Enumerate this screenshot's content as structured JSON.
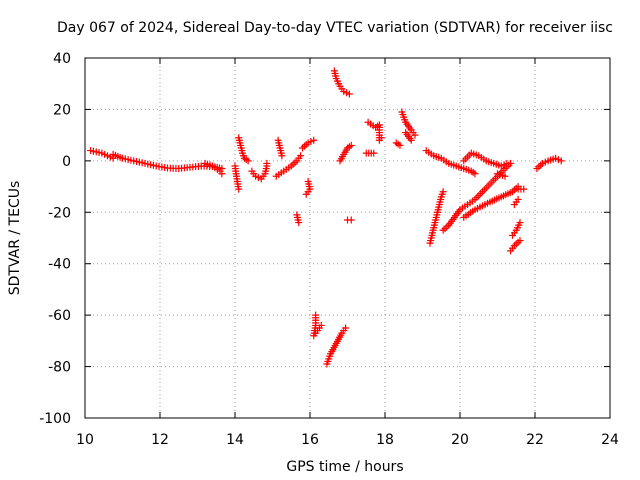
{
  "chart_data": {
    "type": "scatter",
    "title": "Day 067 of 2024, Sidereal Day-to-day VTEC variation (SDTVAR) for receiver iisc",
    "xlabel": "GPS time / hours",
    "ylabel": "SDTVAR / TECUs",
    "xlim": [
      10,
      24
    ],
    "ylim": [
      -100,
      40
    ],
    "xticks": [
      10,
      12,
      14,
      16,
      18,
      20,
      22,
      24
    ],
    "yticks": [
      -100,
      -80,
      -60,
      -40,
      -20,
      0,
      20,
      40
    ],
    "grid": true,
    "legend": "none",
    "marker": "plus",
    "color": "#ff0000",
    "segments": [
      [
        [
          10.15,
          4
        ],
        [
          10.3,
          3.5
        ],
        [
          10.45,
          3
        ],
        [
          10.6,
          2
        ],
        [
          10.75,
          1
        ]
      ],
      [
        [
          10.75,
          2.5
        ],
        [
          11.0,
          1
        ],
        [
          11.3,
          0
        ],
        [
          11.6,
          -1
        ],
        [
          11.9,
          -2
        ],
        [
          12.2,
          -2.8
        ],
        [
          12.5,
          -3
        ],
        [
          12.8,
          -2.5
        ],
        [
          13.1,
          -2
        ],
        [
          13.4,
          -2.2
        ],
        [
          13.65,
          -3
        ]
      ],
      [
        [
          13.2,
          -1
        ],
        [
          13.4,
          -2
        ],
        [
          13.6,
          -4
        ],
        [
          13.65,
          -5
        ]
      ],
      [
        [
          14.0,
          -2
        ],
        [
          14.05,
          -7
        ],
        [
          14.1,
          -11
        ]
      ],
      [
        [
          14.1,
          9
        ],
        [
          14.15,
          6
        ],
        [
          14.2,
          3
        ],
        [
          14.25,
          1
        ],
        [
          14.35,
          0
        ]
      ],
      [
        [
          14.45,
          -4
        ],
        [
          14.55,
          -6
        ],
        [
          14.7,
          -7
        ],
        [
          14.8,
          -5
        ],
        [
          14.85,
          -2
        ],
        [
          14.85,
          -1
        ]
      ],
      [
        [
          15.1,
          -6
        ],
        [
          15.3,
          -4
        ],
        [
          15.5,
          -2
        ],
        [
          15.65,
          0
        ],
        [
          15.75,
          2
        ]
      ],
      [
        [
          15.15,
          8
        ],
        [
          15.2,
          5
        ],
        [
          15.25,
          2
        ]
      ],
      [
        [
          15.8,
          5
        ],
        [
          15.95,
          7
        ],
        [
          16.1,
          8
        ]
      ],
      [
        [
          15.95,
          -8
        ],
        [
          16.0,
          -11
        ],
        [
          15.9,
          -13
        ]
      ],
      [
        [
          15.65,
          -21
        ],
        [
          15.7,
          -24
        ]
      ],
      [
        [
          16.15,
          -60
        ],
        [
          16.15,
          -64
        ],
        [
          16.1,
          -68
        ],
        [
          16.2,
          -66
        ],
        [
          16.3,
          -64
        ]
      ],
      [
        [
          16.45,
          -79
        ],
        [
          16.55,
          -75
        ],
        [
          16.7,
          -71
        ],
        [
          16.85,
          -67
        ],
        [
          16.95,
          -65
        ]
      ],
      [
        [
          16.65,
          35
        ],
        [
          16.7,
          32
        ],
        [
          16.8,
          29
        ],
        [
          16.9,
          27
        ],
        [
          17.05,
          26
        ]
      ],
      [
        [
          16.8,
          0
        ],
        [
          17.0,
          5
        ],
        [
          17.1,
          6
        ]
      ],
      [
        [
          17.0,
          -23
        ],
        [
          17.1,
          -23
        ]
      ],
      [
        [
          17.55,
          15
        ],
        [
          17.75,
          13
        ],
        [
          17.85,
          14
        ],
        [
          17.85,
          8
        ],
        [
          17.9,
          9
        ]
      ],
      [
        [
          17.5,
          3
        ],
        [
          17.7,
          3
        ]
      ],
      [
        [
          18.3,
          7
        ],
        [
          18.4,
          6
        ]
      ],
      [
        [
          18.45,
          19
        ],
        [
          18.55,
          15
        ],
        [
          18.7,
          12
        ],
        [
          18.8,
          10
        ]
      ],
      [
        [
          18.55,
          11
        ],
        [
          18.7,
          8
        ]
      ],
      [
        [
          19.1,
          4
        ],
        [
          19.3,
          2
        ],
        [
          19.5,
          1
        ],
        [
          19.7,
          -1
        ],
        [
          19.9,
          -2
        ],
        [
          20.1,
          -3
        ],
        [
          20.3,
          -4
        ],
        [
          20.4,
          -5
        ]
      ],
      [
        [
          19.2,
          -32
        ],
        [
          19.3,
          -26
        ],
        [
          19.4,
          -20
        ],
        [
          19.5,
          -14
        ],
        [
          19.55,
          -12
        ]
      ],
      [
        [
          19.55,
          -27
        ],
        [
          19.7,
          -25
        ],
        [
          19.85,
          -22
        ],
        [
          20.0,
          -19
        ],
        [
          20.2,
          -17
        ],
        [
          20.4,
          -15
        ],
        [
          20.6,
          -12
        ],
        [
          20.8,
          -9
        ],
        [
          21.0,
          -6
        ],
        [
          21.2,
          -3
        ],
        [
          21.35,
          -1
        ]
      ],
      [
        [
          20.1,
          -22
        ],
        [
          20.4,
          -19
        ],
        [
          20.8,
          -16
        ],
        [
          21.1,
          -14
        ],
        [
          21.4,
          -12
        ],
        [
          21.55,
          -10
        ]
      ],
      [
        [
          20.1,
          0
        ],
        [
          20.3,
          3
        ],
        [
          20.5,
          2
        ],
        [
          20.7,
          0
        ],
        [
          20.9,
          -1
        ],
        [
          21.1,
          -2
        ],
        [
          21.25,
          -1
        ]
      ],
      [
        [
          21.0,
          -5
        ],
        [
          21.2,
          -6
        ]
      ],
      [
        [
          21.35,
          -35
        ],
        [
          21.45,
          -33
        ],
        [
          21.6,
          -31
        ]
      ],
      [
        [
          21.4,
          -29
        ],
        [
          21.5,
          -27
        ],
        [
          21.6,
          -24
        ]
      ],
      [
        [
          21.45,
          -17
        ],
        [
          21.55,
          -15
        ]
      ],
      [
        [
          21.55,
          -11
        ],
        [
          21.7,
          -11
        ]
      ],
      [
        [
          22.05,
          -3
        ],
        [
          22.2,
          -1
        ],
        [
          22.35,
          0
        ],
        [
          22.55,
          1
        ],
        [
          22.7,
          0
        ]
      ]
    ]
  }
}
